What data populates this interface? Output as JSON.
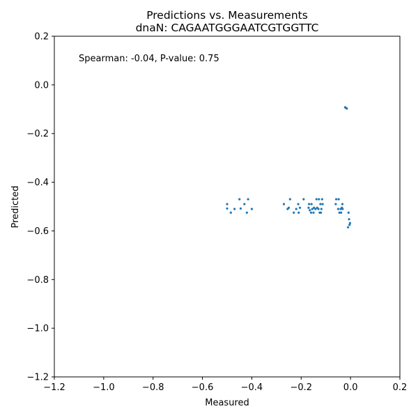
{
  "chart_data": {
    "type": "scatter",
    "title": "Predictions vs. Measurements",
    "subtitle": "dnaN: CAGAATGGGAATCGTGGTTC",
    "xlabel": "Measured",
    "ylabel": "Predicted",
    "xlim": [
      -1.2,
      0.2
    ],
    "ylim": [
      -1.2,
      0.2
    ],
    "xticks": [
      "−1.2",
      "−1.0",
      "−0.8",
      "−0.6",
      "−0.4",
      "−0.2",
      "0.0",
      "0.2"
    ],
    "xtick_values": [
      -1.2,
      -1.0,
      -0.8,
      -0.6,
      -0.4,
      -0.2,
      0.0,
      0.2
    ],
    "yticks": [
      "−1.2",
      "−1.0",
      "−0.8",
      "−0.6",
      "−0.4",
      "−0.2",
      "0.0",
      "0.2"
    ],
    "ytick_values": [
      -1.2,
      -1.0,
      -0.8,
      -0.6,
      -0.4,
      -0.2,
      0.0,
      0.2
    ],
    "annotation": "Spearman: -0.04, P-value: 0.75",
    "grid": false,
    "marker_color": "#1f77b4",
    "points": [
      {
        "x": -0.5,
        "y": -0.49
      },
      {
        "x": -0.5,
        "y": -0.508
      },
      {
        "x": -0.485,
        "y": -0.525
      },
      {
        "x": -0.47,
        "y": -0.51
      },
      {
        "x": -0.45,
        "y": -0.47
      },
      {
        "x": -0.445,
        "y": -0.508
      },
      {
        "x": -0.43,
        "y": -0.49
      },
      {
        "x": -0.42,
        "y": -0.525
      },
      {
        "x": -0.415,
        "y": -0.47
      },
      {
        "x": -0.4,
        "y": -0.51
      },
      {
        "x": -0.27,
        "y": -0.49
      },
      {
        "x": -0.255,
        "y": -0.51
      },
      {
        "x": -0.25,
        "y": -0.505
      },
      {
        "x": -0.245,
        "y": -0.47
      },
      {
        "x": -0.23,
        "y": -0.525
      },
      {
        "x": -0.22,
        "y": -0.51
      },
      {
        "x": -0.212,
        "y": -0.49
      },
      {
        "x": -0.21,
        "y": -0.525
      },
      {
        "x": -0.205,
        "y": -0.505
      },
      {
        "x": -0.19,
        "y": -0.47
      },
      {
        "x": -0.17,
        "y": -0.505
      },
      {
        "x": -0.168,
        "y": -0.49
      },
      {
        "x": -0.165,
        "y": -0.515
      },
      {
        "x": -0.16,
        "y": -0.525
      },
      {
        "x": -0.158,
        "y": -0.49
      },
      {
        "x": -0.155,
        "y": -0.51
      },
      {
        "x": -0.15,
        "y": -0.525
      },
      {
        "x": -0.148,
        "y": -0.505
      },
      {
        "x": -0.142,
        "y": -0.51
      },
      {
        "x": -0.138,
        "y": -0.47
      },
      {
        "x": -0.135,
        "y": -0.505
      },
      {
        "x": -0.13,
        "y": -0.51
      },
      {
        "x": -0.128,
        "y": -0.47
      },
      {
        "x": -0.125,
        "y": -0.525
      },
      {
        "x": -0.122,
        "y": -0.49
      },
      {
        "x": -0.12,
        "y": -0.525
      },
      {
        "x": -0.118,
        "y": -0.51
      },
      {
        "x": -0.115,
        "y": -0.47
      },
      {
        "x": -0.113,
        "y": -0.49
      },
      {
        "x": -0.06,
        "y": -0.49
      },
      {
        "x": -0.058,
        "y": -0.47
      },
      {
        "x": -0.05,
        "y": -0.51
      },
      {
        "x": -0.048,
        "y": -0.47
      },
      {
        "x": -0.045,
        "y": -0.525
      },
      {
        "x": -0.04,
        "y": -0.51
      },
      {
        "x": -0.038,
        "y": -0.525
      },
      {
        "x": -0.035,
        "y": -0.505
      },
      {
        "x": -0.033,
        "y": -0.49
      },
      {
        "x": -0.032,
        "y": -0.51
      },
      {
        "x": -0.022,
        "y": -0.092
      },
      {
        "x": -0.018,
        "y": -0.095
      },
      {
        "x": -0.015,
        "y": -0.097
      },
      {
        "x": -0.01,
        "y": -0.585
      },
      {
        "x": -0.008,
        "y": -0.525
      },
      {
        "x": -0.006,
        "y": -0.552
      },
      {
        "x": -0.004,
        "y": -0.575
      },
      {
        "x": -0.002,
        "y": -0.568
      }
    ]
  }
}
